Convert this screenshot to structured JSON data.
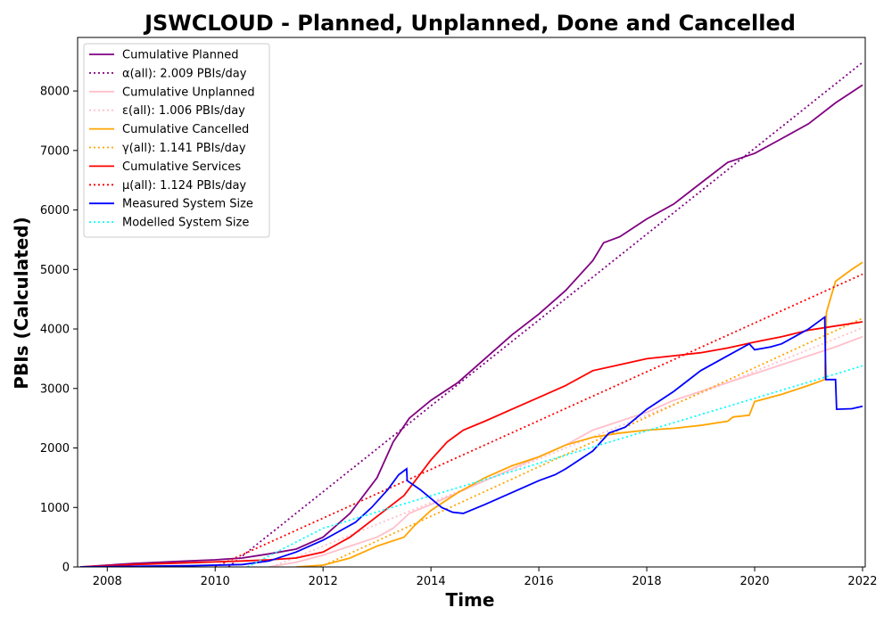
{
  "chart_data": {
    "type": "line",
    "title": "JSWCLOUD - Planned, Unplanned, Done  and Cancelled",
    "xlabel": "Time",
    "ylabel": "PBIs (Calculated)",
    "xlim": [
      2007.45,
      2022.05
    ],
    "ylim": [
      0,
      8900
    ],
    "x_ticks": [
      2008,
      2010,
      2012,
      2014,
      2016,
      2018,
      2020,
      2022
    ],
    "y_ticks": [
      0,
      1000,
      2000,
      3000,
      4000,
      5000,
      6000,
      7000,
      8000
    ],
    "legend_position": "top-left",
    "grid": false,
    "series": [
      {
        "name": "Cumulative Planned",
        "color": "#800080",
        "style": "solid",
        "x": [
          2007.5,
          2008.0,
          2008.5,
          2009.0,
          2009.5,
          2010.0,
          2010.5,
          2011.0,
          2011.5,
          2012.0,
          2012.5,
          2013.0,
          2013.3,
          2013.6,
          2014.0,
          2014.5,
          2015.0,
          2015.5,
          2016.0,
          2016.5,
          2017.0,
          2017.2,
          2017.5,
          2018.0,
          2018.5,
          2019.0,
          2019.5,
          2020.0,
          2020.5,
          2021.0,
          2021.5,
          2022.0
        ],
        "y": [
          0,
          30,
          60,
          80,
          100,
          120,
          150,
          220,
          300,
          500,
          900,
          1500,
          2100,
          2500,
          2800,
          3100,
          3500,
          3900,
          4250,
          4650,
          5150,
          5450,
          5550,
          5850,
          6100,
          6450,
          6800,
          6950,
          7200,
          7450,
          7800,
          8100
        ]
      },
      {
        "name": "α(all): 2.009 PBIs/day",
        "color": "#800080",
        "style": "dotted",
        "x": [
          2010.25,
          2022.0
        ],
        "y": [
          0,
          8480
        ]
      },
      {
        "name": "Cumulative Unplanned",
        "color": "#ffc0cb",
        "style": "solid",
        "x": [
          2011.0,
          2011.5,
          2012.0,
          2012.5,
          2013.0,
          2013.3,
          2013.6,
          2014.0,
          2014.5,
          2015.0,
          2015.5,
          2016.0,
          2016.5,
          2017.0,
          2017.5,
          2018.0,
          2018.5,
          2019.0,
          2019.5,
          2020.0,
          2020.5,
          2021.0,
          2021.5,
          2022.0
        ],
        "y": [
          0,
          80,
          200,
          350,
          500,
          650,
          900,
          1050,
          1250,
          1450,
          1650,
          1850,
          2050,
          2300,
          2450,
          2600,
          2800,
          2950,
          3100,
          3250,
          3400,
          3550,
          3700,
          3870
        ]
      },
      {
        "name": "ε(all): 1.006 PBIs/day",
        "color": "#ffc0cb",
        "style": "dotted",
        "x": [
          2011.05,
          2022.0
        ],
        "y": [
          0,
          4020
        ]
      },
      {
        "name": "Cumulative Cancelled",
        "color": "#ffa500",
        "style": "solid",
        "x": [
          2011.5,
          2012.0,
          2012.5,
          2013.0,
          2013.5,
          2013.7,
          2014.0,
          2014.5,
          2015.0,
          2015.5,
          2016.0,
          2016.5,
          2017.0,
          2017.5,
          2018.0,
          2018.5,
          2019.0,
          2019.5,
          2019.6,
          2019.9,
          2020.0,
          2020.5,
          2021.0,
          2021.3,
          2021.33,
          2021.5,
          2021.8,
          2022.0
        ],
        "y": [
          0,
          30,
          150,
          350,
          500,
          700,
          950,
          1250,
          1500,
          1700,
          1850,
          2050,
          2180,
          2250,
          2300,
          2330,
          2380,
          2450,
          2520,
          2550,
          2780,
          2900,
          3050,
          3150,
          4280,
          4800,
          5000,
          5120
        ]
      },
      {
        "name": "γ(all): 1.141 PBIs/day",
        "color": "#ffa500",
        "style": "dotted",
        "x": [
          2011.95,
          2022.0
        ],
        "y": [
          0,
          4180
        ]
      },
      {
        "name": "Cumulative Services",
        "color": "#ff0000",
        "style": "solid",
        "x": [
          2007.5,
          2008.5,
          2009.5,
          2010.5,
          2011.0,
          2011.5,
          2012.0,
          2012.5,
          2013.0,
          2013.5,
          2014.0,
          2014.3,
          2014.6,
          2015.0,
          2015.5,
          2016.0,
          2016.5,
          2017.0,
          2017.5,
          2018.0,
          2018.5,
          2019.0,
          2019.5,
          2020.0,
          2020.5,
          2021.0,
          2021.5,
          2022.0
        ],
        "y": [
          0,
          40,
          70,
          100,
          120,
          150,
          250,
          500,
          850,
          1200,
          1800,
          2100,
          2300,
          2450,
          2650,
          2850,
          3050,
          3300,
          3400,
          3500,
          3550,
          3600,
          3680,
          3780,
          3870,
          3980,
          4050,
          4120
        ]
      },
      {
        "name": "μ(all): 1.124 PBIs/day",
        "color": "#ff0000",
        "style": "dotted",
        "x": [
          2010.0,
          2022.0
        ],
        "y": [
          0,
          4920
        ]
      },
      {
        "name": "Measured System Size",
        "color": "#0000ff",
        "style": "solid",
        "x": [
          2007.5,
          2008.5,
          2009.5,
          2010.5,
          2011.0,
          2011.5,
          2012.0,
          2012.3,
          2012.6,
          2012.9,
          2013.2,
          2013.4,
          2013.55,
          2013.56,
          2013.8,
          2014.0,
          2014.2,
          2014.4,
          2014.6,
          2015.0,
          2015.5,
          2016.0,
          2016.3,
          2016.5,
          2017.0,
          2017.3,
          2017.6,
          2018.0,
          2018.5,
          2019.0,
          2019.5,
          2019.9,
          2020.0,
          2020.3,
          2020.5,
          2021.0,
          2021.3,
          2021.32,
          2021.5,
          2021.52,
          2021.8,
          2022.0
        ],
        "y": [
          0,
          10,
          20,
          40,
          100,
          250,
          450,
          600,
          750,
          1000,
          1300,
          1550,
          1650,
          1450,
          1300,
          1150,
          1000,
          920,
          900,
          1050,
          1250,
          1450,
          1550,
          1650,
          1950,
          2250,
          2350,
          2650,
          2950,
          3300,
          3550,
          3750,
          3650,
          3700,
          3750,
          4000,
          4200,
          3150,
          3150,
          2650,
          2660,
          2700
        ]
      },
      {
        "name": "Modelled System Size",
        "color": "#00ffff",
        "style": "dotted",
        "x": [
          2010.6,
          2012.0,
          2022.0
        ],
        "y": [
          0,
          650,
          3380
        ]
      }
    ]
  }
}
